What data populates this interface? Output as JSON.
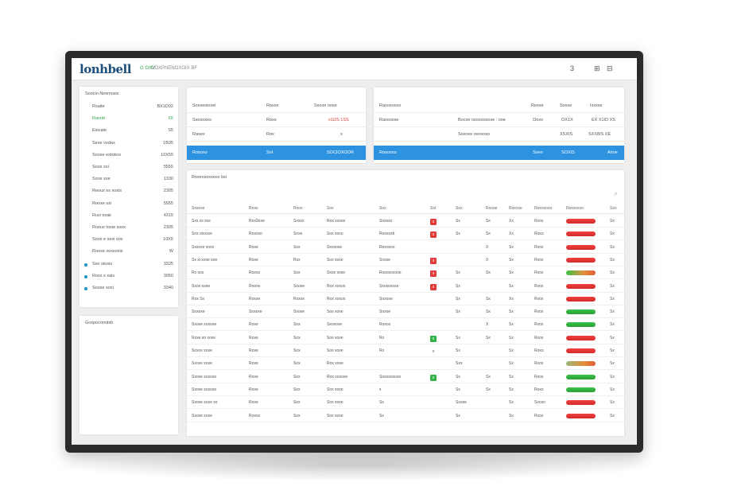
{
  "app": {
    "logo": "lonhbell",
    "logo_sub": "G OXV",
    "nav_text": "DOXPNENOXOIX BF",
    "top_icons": [
      "3",
      "⊞",
      "⊟"
    ]
  },
  "sidebar": {
    "title": "Soocin Nexmosis",
    "items": [
      {
        "label": "Rxaite",
        "value": "BX1D92",
        "highlight": false,
        "dot": false
      },
      {
        "label": "Ranob",
        "value": "X5",
        "highlight": true,
        "dot": false
      },
      {
        "label": "Exicate",
        "value": "S5",
        "highlight": false,
        "dot": false
      },
      {
        "label": "Sexe vodax",
        "value": "1B35",
        "highlight": false,
        "dot": false
      },
      {
        "label": "Sooxe extokox",
        "value": "10X55",
        "highlight": false,
        "dot": false
      },
      {
        "label": "Soox sxi",
        "value": "5555",
        "highlight": false,
        "dot": false
      },
      {
        "label": "Soox sxe",
        "value": "1330",
        "highlight": false,
        "dot": false
      },
      {
        "label": "Reoux xx xoxis",
        "value": "2305",
        "highlight": false,
        "dot": false
      },
      {
        "label": "Rooxe sxi",
        "value": "5555",
        "highlight": false,
        "dot": false
      },
      {
        "label": "Ruxi sxak",
        "value": "4315",
        "highlight": false,
        "dot": false
      },
      {
        "label": "Rooux toxie sxox",
        "value": "2305",
        "highlight": false,
        "dot": false
      },
      {
        "label": "Soox e sexi xox",
        "value": "10X5",
        "highlight": false,
        "dot": false
      },
      {
        "label": "Rooxe xoxxoxis",
        "value": "W",
        "highlight": false,
        "dot": false
      },
      {
        "label": "Sxe stoxis",
        "value": "3325",
        "highlight": false,
        "dot": true
      },
      {
        "label": "Roxs s xais",
        "value": "3050",
        "highlight": false,
        "dot": true
      },
      {
        "label": "Sooxe soxi",
        "value": "3340",
        "highlight": false,
        "dot": true
      }
    ]
  },
  "sidebar2": {
    "title": "Goxpocomitxb"
  },
  "card1": {
    "rows": [
      {
        "a": "Soxxesioxei",
        "b": "Roxxe",
        "c": "Sxoxe ooxe",
        "c_red": false
      },
      {
        "a": "Sxoxoxos",
        "b": "Roxe",
        "c": "x1i2S 1SS",
        "c_red": true
      },
      {
        "a": "Raxex",
        "b": "Rox",
        "c": "x",
        "c_red": false
      }
    ],
    "blue_row": {
      "a": "Roxoxo",
      "b": "Sot",
      "c": "SOCIOXOOR"
    }
  },
  "card2": {
    "rows": [
      {
        "a": "Raxoxooxx",
        "b": "",
        "c": "Rexxe",
        "d": "Soxxe",
        "e": "Ixxxxe"
      },
      {
        "a": "Raxooxse",
        "b": "Bocxe oxooxoxoxe : ooe",
        "c": "Ooxs",
        "d": "OX1X",
        "e": "EX X1ID XS"
      },
      {
        "a": "",
        "b": "Soxoxs oxoxoxo",
        "c": "",
        "d": "XSXIS",
        "e": "SXX8IS XE"
      }
    ],
    "blue_row": {
      "a": "Roxooxo",
      "b": "",
      "c": "Sovn",
      "d": "SOXIS",
      "e": "Ahoe"
    }
  },
  "main": {
    "title": "Roxexsoxxoxx bxi",
    "corner_icon": "⌕",
    "headers": [
      "Sxxexe",
      "Roxe",
      "Rxox",
      "Sox",
      "Sox",
      "Sxt",
      "Sox",
      "Rxooe",
      "Roxxxe",
      "Rexoxoxo",
      "Rexxoxxo",
      "Sox"
    ],
    "rows": [
      {
        "c1": "Sxx xx xox",
        "c2": "Rox9oxe",
        "c3": "Sxxox",
        "c4": "Rox xxoxe",
        "c5": "Soxoxx",
        "tag": "x",
        "tagc": "red",
        "c7": "Sx",
        "c8": "Sx",
        "c9": "Xx",
        "c10": "Rxox",
        "bar": "red",
        "c12": "Sx"
      },
      {
        "c1": "Sox oxoxxe",
        "c2": "Roxoxo",
        "c3": "Soxe",
        "c4": "Sox xoxo",
        "c5": "Rexxoxb",
        "tag": "x",
        "tagc": "red",
        "c7": "Sx",
        "c8": "Sx",
        "c9": "Xx",
        "c10": "Roxo",
        "bar": "red",
        "c12": "Sx"
      },
      {
        "c1": "Sxxoxe xoxo",
        "c2": "Roxe",
        "c3": "Sox",
        "c4": "Sxoxoxe",
        "c5": "Rexoxox",
        "tag": "",
        "tagc": "",
        "c7": "",
        "c8": "X",
        "c9": "Sx",
        "c10": "Rxox",
        "bar": "red",
        "c12": "Sx"
      },
      {
        "c1": "Sx xi xoxe xoe",
        "c2": "Roxe",
        "c3": "Rxx",
        "c4": "Sox xoxe",
        "c5": "Sxoxe",
        "tag": "x",
        "tagc": "red",
        "c7": "",
        "c8": "X",
        "c9": "Sx",
        "c10": "Rxox",
        "bar": "red",
        "c12": "Sx"
      },
      {
        "c1": "Rx xox",
        "c2": "Roxox",
        "c3": "Sox",
        "c4": "Sxox xoxe",
        "c5": "Roxoxoxoxe",
        "tag": "x",
        "tagc": "red",
        "c7": "Sx",
        "c8": "Sx",
        "c9": "Sx",
        "c10": "Rxox",
        "bar": "mixed",
        "c12": "Sx"
      },
      {
        "c1": "Sxox xoxe",
        "c2": "Rooxe",
        "c3": "Sooxe",
        "c4": "Rox xoxox",
        "c5": "Sxoxoxoxe",
        "tag": "x",
        "tagc": "red",
        "c7": "Sx",
        "c8": "",
        "c9": "Sx",
        "c10": "Rxox",
        "bar": "red",
        "c12": "Sx"
      },
      {
        "c1": "Rox Sx",
        "c2": "Roxxe",
        "c3": "Rxxox",
        "c4": "Rox xoxox",
        "c5": "Soxoxe",
        "tag": "",
        "tagc": "",
        "c7": "Sx",
        "c8": "Sx",
        "c9": "Xx",
        "c10": "Rxox",
        "bar": "red",
        "c12": "Sx"
      },
      {
        "c1": "Soxoxe",
        "c2": "Soxoxe",
        "c3": "Sxoxe",
        "c4": "Sox xoxe",
        "c5": "Soxoe",
        "tag": "",
        "tagc": "",
        "c7": "Sx",
        "c8": "Sx",
        "c9": "Sx",
        "c10": "Rxox",
        "bar": "green",
        "c12": "Sx"
      },
      {
        "c1": "Sxoxe xoxoxe",
        "c2": "Roxe",
        "c3": "Sox",
        "c4": "Sxoxoxe",
        "c5": "Roxox",
        "tag": "",
        "tagc": "",
        "c7": "",
        "c8": "X",
        "c9": "Sx",
        "c10": "Rxox",
        "bar": "green",
        "c12": "Sx"
      },
      {
        "c1": "Rxxe xo xoxe",
        "c2": "Roxe",
        "c3": "Sox",
        "c4": "Sox xoxe",
        "c5": "Rx",
        "tag": "x",
        "tagc": "green",
        "c7": "Sx",
        "c8": "Sx",
        "c9": "Sx",
        "c10": "Rxox",
        "bar": "red",
        "c12": "Sx"
      },
      {
        "c1": "Soxox xoxe",
        "c2": "Roxe",
        "c3": "Sox",
        "c4": "Sox xoxe",
        "c5": "Rx",
        "tag": "x",
        "tagc": "",
        "c7": "Sx",
        "c8": "",
        "c9": "Sx",
        "c10": "Roxo",
        "bar": "red",
        "c12": "Sx"
      },
      {
        "c1": "Sxoxe xoxe",
        "c2": "Roxe",
        "c3": "Sox",
        "c4": "Rox xoxe",
        "c5": "",
        "tag": "",
        "tagc": "",
        "c7": "Sxx",
        "c8": "",
        "c9": "Sx",
        "c10": "Rxox",
        "bar": "mixed2",
        "c12": "Sx"
      },
      {
        "c1": "Sxoxe xoxoxe",
        "c2": "Roxe",
        "c3": "Sox",
        "c4": "Rox xoxoxe",
        "c5": "Soxoxoxoxe",
        "tag": "x",
        "tagc": "green",
        "c7": "Sx",
        "c8": "Sx",
        "c9": "Sx",
        "c10": "Rxox",
        "bar": "green",
        "c12": "Sx"
      },
      {
        "c1": "Sxoxe xoxoxe",
        "c2": "Roxe",
        "c3": "Sox",
        "c4": "Sox xoxe",
        "c5": "x",
        "tag": "",
        "tagc": "",
        "c7": "Sx",
        "c8": "Sx",
        "c9": "Sx",
        "c10": "Roxo",
        "bar": "green",
        "c12": "Sx"
      },
      {
        "c1": "Sxoxe xoxe xo",
        "c2": "Roxe",
        "c3": "Sox",
        "c4": "Sox xoxe",
        "c5": "Sx",
        "tag": "",
        "tagc": "",
        "c7": "Sxoxe",
        "c8": "",
        "c9": "Sx",
        "c10": "Sxoxo",
        "bar": "red",
        "c12": "Sx"
      },
      {
        "c1": "Sxoxe xoxe",
        "c2": "Roxox",
        "c3": "Sox",
        "c4": "Sox xoxe",
        "c5": "Sx",
        "tag": "",
        "tagc": "",
        "c7": "Sx",
        "c8": "",
        "c9": "Sx",
        "c10": "Rxox",
        "bar": "red",
        "c12": "Sx"
      }
    ]
  }
}
